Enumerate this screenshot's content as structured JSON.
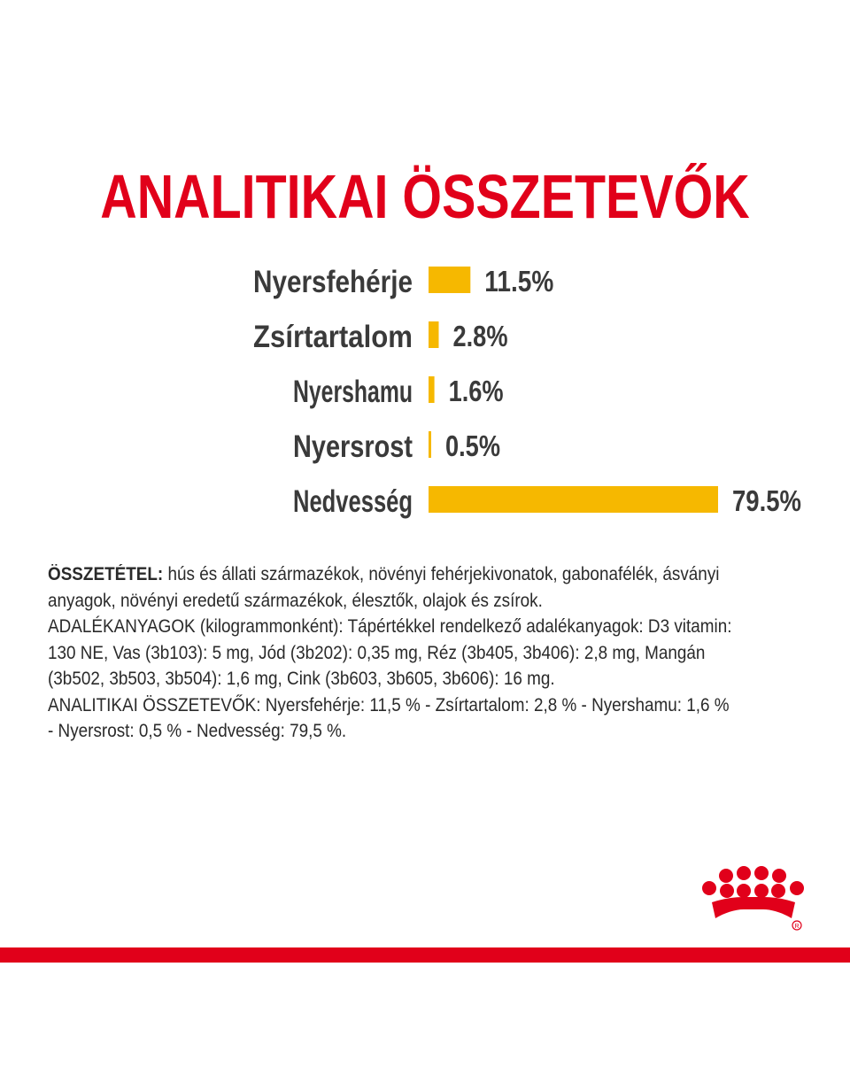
{
  "title": "ANALITIKAI ÖSSZETEVŐK",
  "chart_data": {
    "type": "bar",
    "orientation": "horizontal",
    "title": "ANALITIKAI ÖSSZETEVŐK",
    "categories": [
      "Nyersfehérje",
      "Zsírtartalom",
      "Nyershamu",
      "Nyersrost",
      "Nedvesség"
    ],
    "values": [
      11.5,
      2.8,
      1.6,
      0.5,
      79.5
    ],
    "value_labels": [
      "11.5%",
      "2.8%",
      "1.6%",
      "0.5%",
      "79.5%"
    ],
    "unit": "%",
    "bar_color": "#f6b800",
    "grid": false,
    "legend": "none"
  },
  "composition": {
    "label": "ÖSSZETÉTEL:",
    "lines": [
      " hús és állati származékok, növényi fehérjekivonatok, gabonafélék, ásványi",
      "anyagok, növényi eredetű származékok, élesztők, olajok és zsírok.",
      "ADALÉKANYAGOK (kilogrammonként): Tápértékkel rendelkező adalékanyagok: D3 vitamin:",
      "130 NE, Vas (3b103): 5 mg, Jód (3b202): 0,35 mg, Réz (3b405, 3b406): 2,8 mg, Mangán",
      "(3b502, 3b503, 3b504): 1,6 mg, Cink (3b603, 3b605, 3b606): 16 mg.",
      "ANALITIKAI ÖSSZETEVŐK: Nyersfehérje: 11,5 % - Zsírtartalom: 2,8 % - Nyershamu: 1,6 %",
      "- Nyersrost: 0,5 % - Nedvesség: 79,5 %."
    ]
  },
  "brand": {
    "name": "Royal Canin",
    "color": "#e1001a",
    "logo_icon": "crown-logo-icon"
  }
}
